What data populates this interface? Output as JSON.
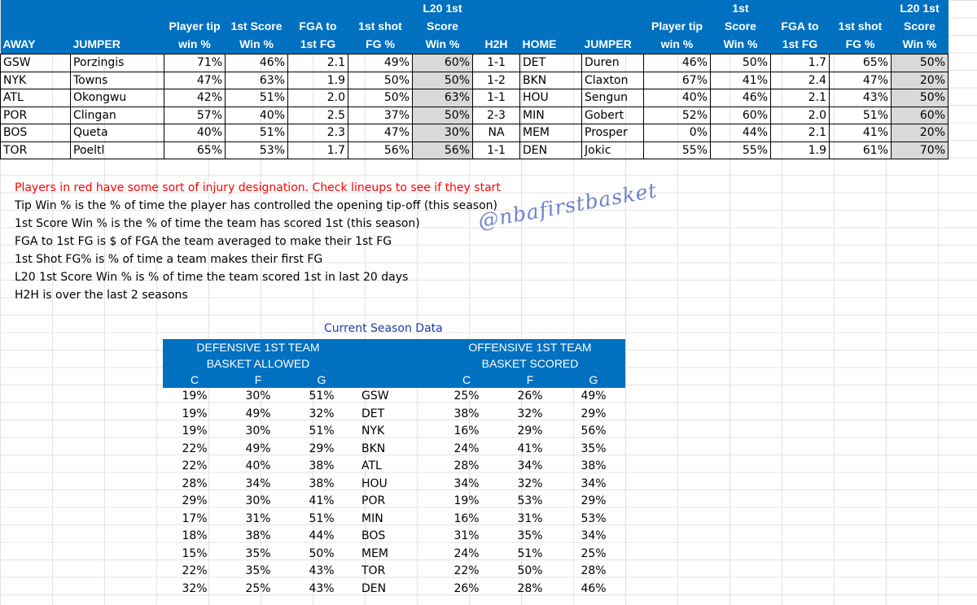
{
  "top_table": {
    "header_line1": [
      "",
      "",
      "",
      "",
      "",
      "",
      "L20 1st",
      "",
      "",
      "",
      "",
      "1st",
      "",
      "",
      "L20 1st"
    ],
    "header_line2": [
      "",
      "",
      "Player tip",
      "1st Score",
      "FGA to",
      "1st shot",
      "Score",
      "",
      "",
      "",
      "Player tip",
      "Score",
      "FGA to",
      "1st shot",
      "Score"
    ],
    "header_line3": [
      "AWAY",
      "JUMPER",
      "win %",
      "Win %",
      "1st FG",
      "FG %",
      "Win %",
      "H2H",
      "HOME",
      "JUMPER",
      "win %",
      "Win %",
      "1st FG",
      "FG %",
      "Win %"
    ],
    "rows": [
      [
        "GSW",
        "Porzingis",
        "71%",
        "46%",
        "2.1",
        "49%",
        "60%",
        "1-1",
        "DET",
        "Duren",
        "46%",
        "50%",
        "1.7",
        "65%",
        "50%"
      ],
      [
        "NYK",
        "Towns",
        "47%",
        "63%",
        "1.9",
        "50%",
        "50%",
        "1-2",
        "BKN",
        "Claxton",
        "67%",
        "41%",
        "2.4",
        "47%",
        "20%"
      ],
      [
        "ATL",
        "Okongwu",
        "42%",
        "51%",
        "2.0",
        "50%",
        "63%",
        "1-1",
        "HOU",
        "Sengun",
        "40%",
        "46%",
        "2.1",
        "43%",
        "50%"
      ],
      [
        "POR",
        "Clingan",
        "57%",
        "40%",
        "2.5",
        "37%",
        "50%",
        "2-3",
        "MIN",
        "Gobert",
        "52%",
        "60%",
        "2.0",
        "51%",
        "60%"
      ],
      [
        "BOS",
        "Queta",
        "40%",
        "51%",
        "2.3",
        "47%",
        "30%",
        "NA",
        "MEM",
        "Prosper",
        "0%",
        "44%",
        "2.1",
        "41%",
        "20%"
      ],
      [
        "TOR",
        "Poeltl",
        "65%",
        "53%",
        "1.7",
        "56%",
        "56%",
        "1-1",
        "DEN",
        "Jokic",
        "55%",
        "55%",
        "1.9",
        "61%",
        "70%"
      ]
    ]
  },
  "notes": {
    "injury": "Players in red have some sort of injury designation.  Check lineups to see if they start",
    "lines": [
      "Tip Win % is the % of time the player has controlled the opening tip-off (this season)",
      "1st Score Win % is the % of time the team has scored 1st (this season)",
      "FGA to 1st FG is $ of FGA the team averaged to make their 1st FG",
      "1st Shot FG% is % of time a team makes their first FG",
      "L20 1st Score Win % is % of time the team scored 1st in last 20 days",
      "H2H is over the last 2 seasons"
    ]
  },
  "watermark": "@nbafirstbasket",
  "season": {
    "label": "Current Season Data",
    "defensive_title_1": "DEFENSIVE 1ST TEAM",
    "defensive_title_2": "BASKET ALLOWED",
    "offensive_title_1": "OFFENSIVE 1ST TEAM",
    "offensive_title_2": "BASKET SCORED",
    "position_headers": [
      "C",
      "F",
      "G"
    ],
    "rows": [
      {
        "def": [
          "19%",
          "30%",
          "51%"
        ],
        "team": "GSW",
        "off": [
          "25%",
          "26%",
          "49%"
        ]
      },
      {
        "def": [
          "19%",
          "49%",
          "32%"
        ],
        "team": "DET",
        "off": [
          "38%",
          "32%",
          "29%"
        ]
      },
      {
        "def": [
          "19%",
          "30%",
          "51%"
        ],
        "team": "NYK",
        "off": [
          "16%",
          "29%",
          "56%"
        ]
      },
      {
        "def": [
          "22%",
          "49%",
          "29%"
        ],
        "team": "BKN",
        "off": [
          "24%",
          "41%",
          "35%"
        ]
      },
      {
        "def": [
          "22%",
          "40%",
          "38%"
        ],
        "team": "ATL",
        "off": [
          "28%",
          "34%",
          "38%"
        ]
      },
      {
        "def": [
          "28%",
          "34%",
          "38%"
        ],
        "team": "HOU",
        "off": [
          "34%",
          "32%",
          "34%"
        ]
      },
      {
        "def": [
          "29%",
          "30%",
          "41%"
        ],
        "team": "POR",
        "off": [
          "19%",
          "53%",
          "29%"
        ]
      },
      {
        "def": [
          "17%",
          "31%",
          "51%"
        ],
        "team": "MIN",
        "off": [
          "16%",
          "31%",
          "53%"
        ]
      },
      {
        "def": [
          "18%",
          "38%",
          "44%"
        ],
        "team": "BOS",
        "off": [
          "31%",
          "35%",
          "34%"
        ]
      },
      {
        "def": [
          "15%",
          "35%",
          "50%"
        ],
        "team": "MEM",
        "off": [
          "24%",
          "51%",
          "25%"
        ]
      },
      {
        "def": [
          "22%",
          "35%",
          "43%"
        ],
        "team": "TOR",
        "off": [
          "22%",
          "50%",
          "28%"
        ]
      },
      {
        "def": [
          "32%",
          "25%",
          "43%"
        ],
        "team": "DEN",
        "off": [
          "26%",
          "28%",
          "46%"
        ]
      }
    ]
  },
  "colors": {
    "header_blue": "#0070c0",
    "highlight_grey": "#d9d9d9",
    "injury_red": "#ff0000",
    "watermark": "#6f7fcf"
  }
}
